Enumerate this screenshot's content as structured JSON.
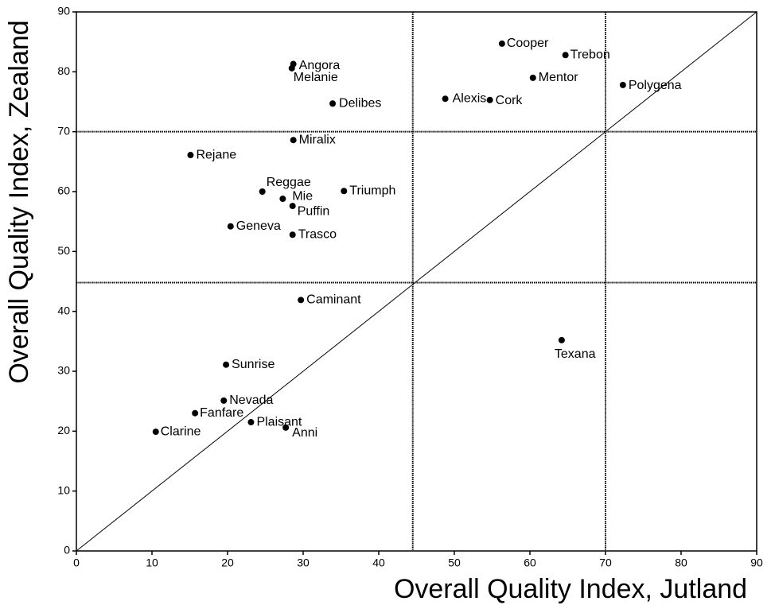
{
  "chart_data": {
    "type": "scatter",
    "x_label": "Overall Quality Index, Jutland",
    "y_label": "Overall Quality Index, Zealand",
    "labels": [
      "Angora",
      "Melanie",
      "Cooper",
      "Trebon",
      "Mentor",
      "Polygena",
      "Alexis",
      "Cork",
      "Delibes",
      "Miralix",
      "Rejane",
      "Reggae",
      "Mie",
      "Puffin",
      "Triumph",
      "Geneva",
      "Trasco",
      "Caminant",
      "Texana",
      "Sunrise",
      "Nevada",
      "Fanfare",
      "Plaisant",
      "Anni",
      "Clarine"
    ],
    "x": [
      28.7,
      28.5,
      56.3,
      64.7,
      60.4,
      72.3,
      48.8,
      54.7,
      33.9,
      28.7,
      15.1,
      24.6,
      27.3,
      28.6,
      35.4,
      20.4,
      28.6,
      29.7,
      64.2,
      19.8,
      19.5,
      15.7,
      23.1,
      27.7,
      10.5
    ],
    "values": [
      81.3,
      80.6,
      84.7,
      82.8,
      79.0,
      77.8,
      75.5,
      75.3,
      74.7,
      68.6,
      66.1,
      60.0,
      58.8,
      57.6,
      60.1,
      54.2,
      52.8,
      41.9,
      35.2,
      31.1,
      25.1,
      23.0,
      21.5,
      20.6,
      19.9
    ],
    "color": "#000000",
    "xlim": [
      0,
      90
    ],
    "ylim": [
      0,
      90
    ],
    "xticks": [
      0,
      10,
      20,
      30,
      40,
      50,
      60,
      70,
      80,
      90
    ],
    "yticks": [
      0,
      10,
      20,
      30,
      40,
      50,
      60,
      70,
      80,
      90
    ],
    "x_reference_lines": [
      44.5,
      70
    ],
    "y_reference_lines": [
      44.8,
      70
    ],
    "diagonal": true
  }
}
